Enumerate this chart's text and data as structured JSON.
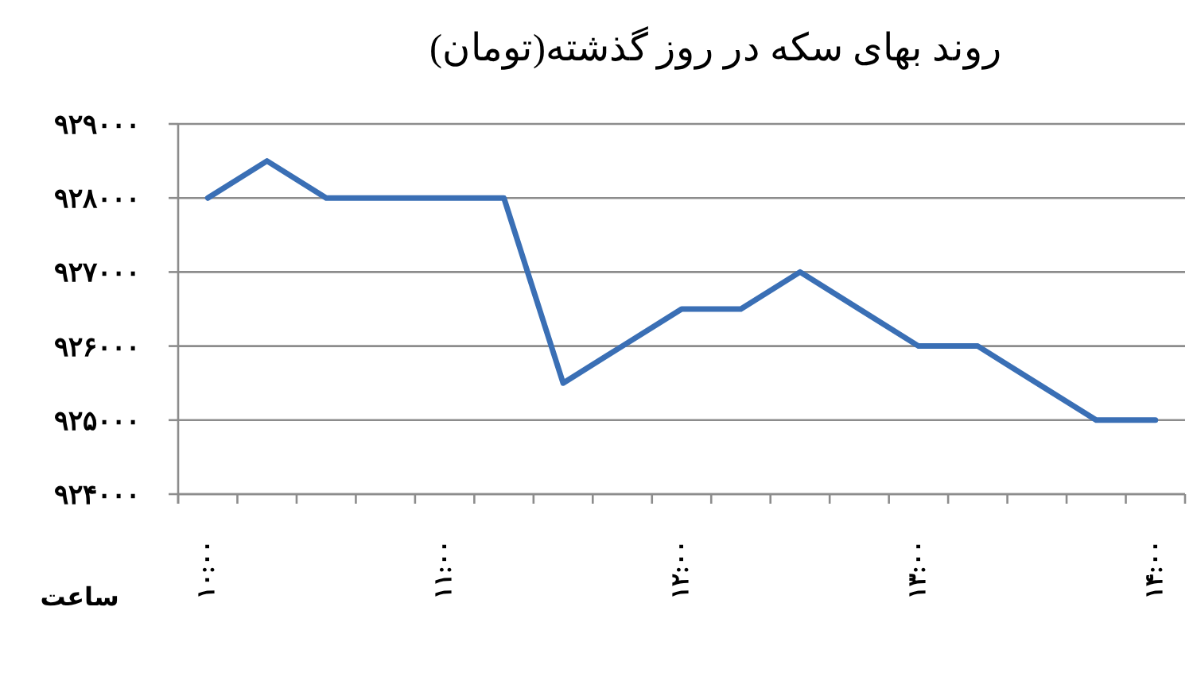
{
  "chart_data": {
    "type": "line",
    "title": "روند بهای سکه در روز گذشته(تومان)",
    "xlabel": "ساعت",
    "categories": [
      "۱۰:۰۰",
      null,
      null,
      null,
      "۱۱:۰۰",
      null,
      null,
      null,
      "۱۲:۰۰",
      null,
      null,
      null,
      "۱۳:۰۰",
      null,
      null,
      null,
      "۱۴:۰۰"
    ],
    "series": [
      {
        "color": "#3a6fb5",
        "values": [
          928000,
          928500,
          928000,
          928000,
          928000,
          928000,
          925500,
          926000,
          926500,
          926500,
          927000,
          926500,
          926000,
          926000,
          925500,
          925000,
          925000
        ]
      }
    ],
    "ylim": [
      924000,
      929000
    ],
    "yticks": [
      {
        "value": 924000,
        "label": "۹۲۴۰۰۰"
      },
      {
        "value": 925000,
        "label": "۹۲۵۰۰۰"
      },
      {
        "value": 926000,
        "label": "۹۲۶۰۰۰"
      },
      {
        "value": 927000,
        "label": "۹۲۷۰۰۰"
      },
      {
        "value": 928000,
        "label": "۹۲۸۰۰۰"
      },
      {
        "value": 929000,
        "label": "۹۲۹۰۰۰"
      }
    ],
    "grid": "y",
    "marker": "none",
    "line_style": "solid"
  }
}
